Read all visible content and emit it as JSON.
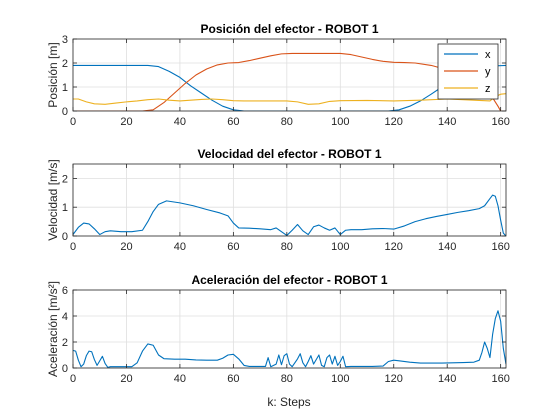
{
  "figure": {
    "xlabel": "k: Steps",
    "colors": {
      "x": "#0072BD",
      "y": "#D95319",
      "z": "#EDB120",
      "axis": "#262626",
      "grid": "#dfdfdf"
    }
  },
  "chart_data": [
    {
      "type": "line",
      "title": "Posición del efector - ROBOT 1",
      "ylabel": "Posición [m]",
      "xlim": [
        0,
        162
      ],
      "ylim": [
        0,
        3
      ],
      "xticks": [
        0,
        20,
        40,
        60,
        80,
        100,
        120,
        140,
        160
      ],
      "yticks": [
        0,
        1,
        2,
        3
      ],
      "grid": true,
      "legend": "top-right",
      "series": [
        {
          "name": "x",
          "color": "#0072BD",
          "points": [
            [
              0,
              1.9
            ],
            [
              10,
              1.9
            ],
            [
              20,
              1.9
            ],
            [
              28,
              1.9
            ],
            [
              32,
              1.85
            ],
            [
              36,
              1.65
            ],
            [
              40,
              1.4
            ],
            [
              44,
              1.05
            ],
            [
              48,
              0.75
            ],
            [
              52,
              0.45
            ],
            [
              56,
              0.2
            ],
            [
              60,
              0.05
            ],
            [
              64,
              0.0
            ],
            [
              70,
              0.0
            ],
            [
              80,
              0.0
            ],
            [
              90,
              0.0
            ],
            [
              100,
              0.0
            ],
            [
              110,
              0.0
            ],
            [
              118,
              0.0
            ],
            [
              122,
              0.05
            ],
            [
              126,
              0.2
            ],
            [
              130,
              0.42
            ],
            [
              134,
              0.7
            ],
            [
              138,
              1.0
            ],
            [
              142,
              1.3
            ],
            [
              146,
              1.55
            ],
            [
              150,
              1.72
            ],
            [
              154,
              1.82
            ],
            [
              158,
              1.88
            ],
            [
              162,
              1.9
            ]
          ]
        },
        {
          "name": "y",
          "color": "#D95319",
          "points": [
            [
              0,
              0.0
            ],
            [
              20,
              0.0
            ],
            [
              26,
              0.0
            ],
            [
              30,
              0.05
            ],
            [
              34,
              0.35
            ],
            [
              38,
              0.75
            ],
            [
              42,
              1.15
            ],
            [
              46,
              1.5
            ],
            [
              50,
              1.75
            ],
            [
              54,
              1.92
            ],
            [
              58,
              2.0
            ],
            [
              62,
              2.02
            ],
            [
              66,
              2.1
            ],
            [
              70,
              2.2
            ],
            [
              74,
              2.3
            ],
            [
              78,
              2.38
            ],
            [
              82,
              2.4
            ],
            [
              90,
              2.4
            ],
            [
              100,
              2.4
            ],
            [
              104,
              2.35
            ],
            [
              108,
              2.25
            ],
            [
              112,
              2.15
            ],
            [
              116,
              2.07
            ],
            [
              120,
              2.03
            ],
            [
              124,
              2.02
            ],
            [
              128,
              2.0
            ],
            [
              134,
              1.9
            ],
            [
              140,
              1.72
            ],
            [
              146,
              1.48
            ],
            [
              150,
              1.25
            ],
            [
              154,
              0.95
            ],
            [
              157,
              0.55
            ],
            [
              159,
              0.2
            ],
            [
              160,
              0.0
            ],
            [
              162,
              0.0
            ]
          ]
        },
        {
          "name": "z",
          "color": "#EDB120",
          "points": [
            [
              0,
              0.5
            ],
            [
              2,
              0.5
            ],
            [
              5,
              0.38
            ],
            [
              8,
              0.3
            ],
            [
              12,
              0.28
            ],
            [
              16,
              0.33
            ],
            [
              20,
              0.38
            ],
            [
              24,
              0.42
            ],
            [
              28,
              0.47
            ],
            [
              32,
              0.5
            ],
            [
              36,
              0.45
            ],
            [
              40,
              0.42
            ],
            [
              44,
              0.45
            ],
            [
              48,
              0.48
            ],
            [
              52,
              0.5
            ],
            [
              56,
              0.47
            ],
            [
              60,
              0.43
            ],
            [
              64,
              0.42
            ],
            [
              70,
              0.42
            ],
            [
              80,
              0.42
            ],
            [
              84,
              0.38
            ],
            [
              88,
              0.28
            ],
            [
              92,
              0.3
            ],
            [
              96,
              0.4
            ],
            [
              100,
              0.43
            ],
            [
              110,
              0.44
            ],
            [
              120,
              0.42
            ],
            [
              130,
              0.45
            ],
            [
              140,
              0.5
            ],
            [
              150,
              0.45
            ],
            [
              156,
              0.42
            ],
            [
              158,
              0.6
            ],
            [
              160,
              0.7
            ],
            [
              162,
              0.72
            ]
          ]
        }
      ]
    },
    {
      "type": "line",
      "title": "Velocidad del efector - ROBOT 1",
      "ylabel": "Velocidad [m/s]",
      "xlim": [
        0,
        162
      ],
      "ylim": [
        0,
        2.5
      ],
      "xticks": [
        0,
        20,
        40,
        60,
        80,
        100,
        120,
        140,
        160
      ],
      "yticks": [
        0,
        1,
        2
      ],
      "grid": true,
      "series": [
        {
          "color": "#0072BD",
          "points": [
            [
              0,
              0.05
            ],
            [
              2,
              0.3
            ],
            [
              4,
              0.45
            ],
            [
              6,
              0.42
            ],
            [
              8,
              0.25
            ],
            [
              10,
              0.05
            ],
            [
              12,
              0.15
            ],
            [
              14,
              0.18
            ],
            [
              18,
              0.15
            ],
            [
              22,
              0.15
            ],
            [
              26,
              0.2
            ],
            [
              28,
              0.5
            ],
            [
              30,
              0.85
            ],
            [
              32,
              1.1
            ],
            [
              35,
              1.22
            ],
            [
              40,
              1.15
            ],
            [
              45,
              1.05
            ],
            [
              50,
              0.92
            ],
            [
              55,
              0.8
            ],
            [
              58,
              0.7
            ],
            [
              60,
              0.45
            ],
            [
              62,
              0.28
            ],
            [
              66,
              0.27
            ],
            [
              70,
              0.25
            ],
            [
              74,
              0.22
            ],
            [
              76,
              0.28
            ],
            [
              78,
              0.15
            ],
            [
              80,
              0.02
            ],
            [
              82,
              0.2
            ],
            [
              84,
              0.4
            ],
            [
              86,
              0.18
            ],
            [
              88,
              0.05
            ],
            [
              90,
              0.32
            ],
            [
              92,
              0.38
            ],
            [
              94,
              0.28
            ],
            [
              96,
              0.2
            ],
            [
              98,
              0.28
            ],
            [
              100,
              0.05
            ],
            [
              102,
              0.2
            ],
            [
              104,
              0.22
            ],
            [
              108,
              0.22
            ],
            [
              112,
              0.25
            ],
            [
              116,
              0.26
            ],
            [
              120,
              0.24
            ],
            [
              124,
              0.35
            ],
            [
              128,
              0.5
            ],
            [
              132,
              0.6
            ],
            [
              136,
              0.68
            ],
            [
              140,
              0.75
            ],
            [
              144,
              0.82
            ],
            [
              148,
              0.88
            ],
            [
              152,
              0.95
            ],
            [
              154,
              1.05
            ],
            [
              156,
              1.3
            ],
            [
              157,
              1.42
            ],
            [
              158,
              1.38
            ],
            [
              159,
              1.05
            ],
            [
              160,
              0.55
            ],
            [
              161,
              0.1
            ],
            [
              162,
              0.0
            ]
          ]
        }
      ]
    },
    {
      "type": "line",
      "title": "Aceleración del efector - ROBOT 1",
      "ylabel": "Aceleración [m/s²]",
      "xlim": [
        0,
        162
      ],
      "ylim": [
        0,
        6
      ],
      "xticks": [
        0,
        20,
        40,
        60,
        80,
        100,
        120,
        140,
        160
      ],
      "yticks": [
        0,
        2,
        4,
        6
      ],
      "grid": true,
      "series": [
        {
          "color": "#0072BD",
          "points": [
            [
              0,
              1.35
            ],
            [
              1,
              1.3
            ],
            [
              2,
              0.6
            ],
            [
              3,
              0.1
            ],
            [
              4,
              0.3
            ],
            [
              5,
              0.95
            ],
            [
              6,
              1.3
            ],
            [
              7,
              1.25
            ],
            [
              8,
              0.65
            ],
            [
              9,
              0.2
            ],
            [
              10,
              0.55
            ],
            [
              11,
              0.9
            ],
            [
              12,
              0.35
            ],
            [
              13,
              0.05
            ],
            [
              14,
              0.1
            ],
            [
              18,
              0.1
            ],
            [
              22,
              0.1
            ],
            [
              24,
              0.4
            ],
            [
              26,
              1.3
            ],
            [
              28,
              1.85
            ],
            [
              30,
              1.75
            ],
            [
              32,
              1.0
            ],
            [
              34,
              0.72
            ],
            [
              38,
              0.68
            ],
            [
              42,
              0.68
            ],
            [
              46,
              0.62
            ],
            [
              50,
              0.6
            ],
            [
              54,
              0.6
            ],
            [
              56,
              0.75
            ],
            [
              58,
              1.0
            ],
            [
              60,
              1.05
            ],
            [
              62,
              0.7
            ],
            [
              64,
              0.2
            ],
            [
              66,
              0.12
            ],
            [
              70,
              0.12
            ],
            [
              72,
              0.12
            ],
            [
              73,
              0.8
            ],
            [
              74,
              0.1
            ],
            [
              76,
              0.3
            ],
            [
              77,
              1.0
            ],
            [
              78,
              0.25
            ],
            [
              79,
              0.95
            ],
            [
              80,
              1.1
            ],
            [
              81,
              0.3
            ],
            [
              82,
              0.1
            ],
            [
              84,
              0.7
            ],
            [
              85,
              1.1
            ],
            [
              86,
              0.4
            ],
            [
              87,
              0.1
            ],
            [
              88,
              0.5
            ],
            [
              89,
              0.95
            ],
            [
              90,
              0.3
            ],
            [
              92,
              1.0
            ],
            [
              93,
              0.2
            ],
            [
              94,
              0.1
            ],
            [
              95,
              0.8
            ],
            [
              96,
              1.0
            ],
            [
              97,
              0.3
            ],
            [
              98,
              0.9
            ],
            [
              99,
              0.2
            ],
            [
              100,
              0.5
            ],
            [
              101,
              0.9
            ],
            [
              102,
              0.1
            ],
            [
              104,
              0.12
            ],
            [
              108,
              0.12
            ],
            [
              112,
              0.12
            ],
            [
              116,
              0.15
            ],
            [
              118,
              0.5
            ],
            [
              120,
              0.6
            ],
            [
              122,
              0.55
            ],
            [
              126,
              0.45
            ],
            [
              130,
              0.38
            ],
            [
              134,
              0.38
            ],
            [
              138,
              0.38
            ],
            [
              142,
              0.4
            ],
            [
              146,
              0.42
            ],
            [
              150,
              0.45
            ],
            [
              152,
              0.6
            ],
            [
              153,
              1.2
            ],
            [
              154,
              2.0
            ],
            [
              155,
              1.5
            ],
            [
              156,
              0.8
            ],
            [
              157,
              2.6
            ],
            [
              158,
              3.8
            ],
            [
              159,
              4.4
            ],
            [
              160,
              3.6
            ],
            [
              161,
              1.5
            ],
            [
              162,
              0.3
            ]
          ]
        }
      ]
    }
  ]
}
